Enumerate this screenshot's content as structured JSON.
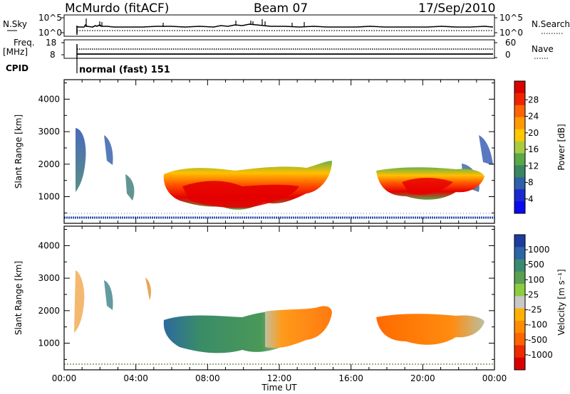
{
  "header": {
    "station": "McMurdo (fitACF)",
    "beam": "Beam 07",
    "date": "17/Sep/2010"
  },
  "summary": {
    "nsky_label": "N.Sky",
    "nsky_ticks": [
      "10^5",
      "10^0"
    ],
    "nsearch_label": "N.Search",
    "freq_label_1": "Freq.",
    "freq_label_2": "[MHz]",
    "freq_ticks": [
      "18",
      "8"
    ],
    "nave_label": "Nave",
    "nave_ticks": [
      "60",
      "0"
    ],
    "cpid_label": "CPID",
    "cpid_text": "normal (fast) 151"
  },
  "chart_data": [
    {
      "type": "heatmap",
      "panel": "power",
      "ylabel": "Slant Range [km]",
      "xlabel": "Time UT",
      "ylim": [
        180,
        4600
      ],
      "yticks": [
        1000,
        2000,
        3000,
        4000
      ],
      "xticks": [
        "00:00",
        "04:00",
        "08:00",
        "12:00",
        "16:00",
        "20:00",
        "00:00"
      ],
      "colorbar": {
        "label": "Power [dB]",
        "ticks": [
          "28",
          "24",
          "20",
          "16",
          "12",
          "8",
          "4"
        ],
        "colors": [
          "#d90000",
          "#ee2400",
          "#ff6400",
          "#ff9a00",
          "#ffc800",
          "#a8cc40",
          "#5aa848",
          "#3a8660",
          "#3060a8",
          "#1a2ad0",
          "#0a0af0"
        ]
      },
      "echo_regions_hours_km": [
        {
          "t0": 5.8,
          "t1": 14.8,
          "r0": 600,
          "r1": 1750,
          "level": "strong"
        },
        {
          "t0": 17.3,
          "t1": 22.5,
          "r0": 900,
          "r1": 1750,
          "level": "strong"
        },
        {
          "t0": 0.0,
          "t1": 5.5,
          "r0": 700,
          "r1": 3100,
          "level": "weak"
        },
        {
          "t0": 22.5,
          "t1": 24.0,
          "r0": 1000,
          "r1": 3000,
          "level": "weak"
        }
      ]
    },
    {
      "type": "heatmap",
      "panel": "velocity",
      "ylabel": "Slant Range [km]",
      "xlabel": "Time UT",
      "ylim": [
        180,
        4600
      ],
      "yticks": [
        1000,
        2000,
        3000,
        4000
      ],
      "xticks": [
        "00:00",
        "04:00",
        "08:00",
        "12:00",
        "16:00",
        "20:00",
        "00:00"
      ],
      "colorbar": {
        "label": "Velocity [m s⁻¹]",
        "ticks": [
          "1000",
          "500",
          "100",
          "25",
          "-25",
          "-100",
          "-500",
          "-1000"
        ],
        "colors": [
          "#1e3ca0",
          "#2c64a8",
          "#3a8a70",
          "#5aa050",
          "#8ccc40",
          "#c8c8c8",
          "#ffb000",
          "#ff8c00",
          "#ff6400",
          "#ee2a00",
          "#d90000"
        ]
      },
      "echo_regions_hours_km": [
        {
          "t0": 5.8,
          "t1": 11.0,
          "r0": 600,
          "r1": 1750,
          "level": "toward"
        },
        {
          "t0": 11.0,
          "t1": 14.8,
          "r0": 600,
          "r1": 1750,
          "level": "away"
        },
        {
          "t0": 17.3,
          "t1": 22.5,
          "r0": 900,
          "r1": 1750,
          "level": "away"
        }
      ]
    }
  ]
}
